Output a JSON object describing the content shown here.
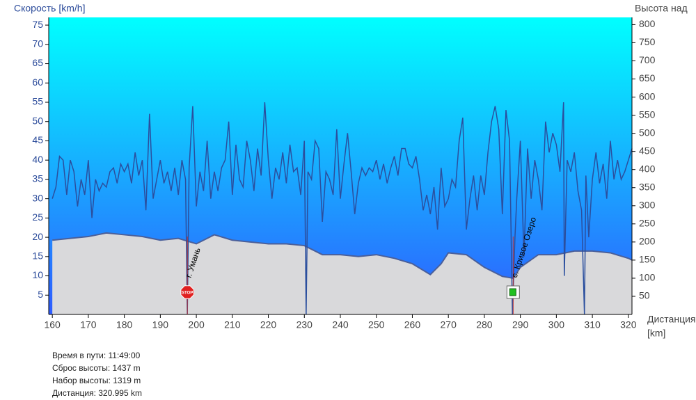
{
  "chart_data": {
    "type": "line",
    "ylabel": "Скорость [km/h]",
    "y2label": "Высота над",
    "xlabel": [
      "Дистанция",
      "[km]"
    ],
    "xlim": [
      159,
      321
    ],
    "xticks": [
      160,
      170,
      180,
      190,
      200,
      210,
      220,
      230,
      240,
      250,
      260,
      270,
      280,
      290,
      300,
      310,
      320
    ],
    "ylim": [
      0,
      77
    ],
    "yticks": [
      5,
      10,
      15,
      20,
      25,
      30,
      35,
      40,
      45,
      50,
      55,
      60,
      65,
      70,
      75
    ],
    "y2lim": [
      0,
      820
    ],
    "y2ticks": [
      50,
      100,
      150,
      200,
      250,
      300,
      350,
      400,
      450,
      500,
      550,
      600,
      650,
      700,
      750,
      800
    ],
    "series": [
      {
        "name": "Скорость",
        "color": "#2b4f9e",
        "x": [
          160,
          161,
          162,
          163,
          164,
          165,
          166,
          167,
          168,
          169,
          170,
          171,
          172,
          173,
          174,
          175,
          176,
          177,
          178,
          179,
          180,
          181,
          182,
          183,
          184,
          185,
          186,
          187,
          188,
          189,
          190,
          191,
          192,
          193,
          194,
          195,
          196,
          197,
          197.5,
          198,
          199,
          200,
          201,
          202,
          203,
          204,
          205,
          206,
          207,
          208,
          209,
          210,
          211,
          212,
          213,
          214,
          215,
          216,
          217,
          218,
          219,
          220,
          221,
          222,
          223,
          224,
          225,
          226,
          227,
          228,
          229,
          230,
          230.5,
          231,
          232,
          233,
          234,
          235,
          236,
          237,
          238,
          239,
          240,
          241,
          242,
          243,
          244,
          245,
          246,
          247,
          248,
          249,
          250,
          251,
          252,
          253,
          254,
          255,
          256,
          257,
          258,
          259,
          260,
          261,
          262,
          263,
          264,
          265,
          266,
          267,
          268,
          269,
          270,
          271,
          272,
          273,
          274,
          275,
          276,
          277,
          278,
          279,
          280,
          281,
          282,
          283,
          284,
          285,
          286,
          287,
          287.8,
          288.5,
          289,
          290,
          291,
          292,
          293,
          294,
          295,
          296,
          297,
          298,
          299,
          300,
          301,
          302,
          302.2,
          303,
          304,
          305,
          306,
          307,
          307.8,
          308.2,
          309,
          310,
          311,
          312,
          313,
          314,
          315,
          316,
          317,
          318,
          319,
          320,
          321
        ],
        "values": [
          30,
          33,
          41,
          40,
          31,
          40,
          37,
          28,
          35,
          31,
          40,
          25,
          35,
          32,
          34,
          33,
          37,
          38,
          34,
          39,
          37,
          39,
          34,
          42,
          36,
          40,
          27,
          52,
          30,
          35,
          40,
          34,
          37,
          32,
          38,
          31,
          40,
          35,
          0,
          38,
          54,
          28,
          37,
          32,
          45,
          30,
          37,
          32,
          38,
          40,
          50,
          31,
          44,
          35,
          33,
          45,
          40,
          32,
          43,
          36,
          55,
          40,
          30,
          38,
          35,
          42,
          34,
          44,
          37,
          38,
          31,
          45,
          0,
          37,
          35,
          45,
          43,
          24,
          37,
          35,
          31,
          48,
          30,
          39,
          47,
          37,
          26,
          34,
          38,
          36,
          38,
          37,
          40,
          35,
          39,
          34,
          38,
          41,
          36,
          43,
          43,
          39,
          38,
          41,
          35,
          27,
          31,
          26,
          33,
          22,
          38,
          28,
          30,
          35,
          33,
          45,
          51,
          22,
          30,
          36,
          27,
          36,
          31,
          42,
          50,
          54,
          48,
          26,
          53,
          45,
          0,
          20,
          30,
          45,
          15,
          43,
          30,
          40,
          35,
          27,
          50,
          42,
          47,
          44,
          37,
          55,
          10,
          40,
          37,
          42,
          32,
          27,
          0,
          36,
          20,
          35,
          42,
          34,
          39,
          30,
          45,
          35,
          40,
          35,
          37,
          40,
          43
        ]
      },
      {
        "name": "Высота",
        "color": "#d9d9db",
        "axis": "y2",
        "x": [
          160,
          165,
          170,
          175,
          180,
          185,
          190,
          195,
          200,
          205,
          210,
          215,
          220,
          225,
          230,
          235,
          240,
          245,
          250,
          255,
          260,
          265,
          268,
          270,
          275,
          280,
          285,
          288,
          290,
          295,
          300,
          305,
          310,
          315,
          320,
          321
        ],
        "values": [
          205,
          210,
          215,
          225,
          220,
          215,
          205,
          210,
          195,
          220,
          205,
          200,
          195,
          195,
          190,
          165,
          165,
          160,
          165,
          155,
          140,
          110,
          140,
          170,
          165,
          130,
          105,
          100,
          130,
          165,
          165,
          175,
          175,
          170,
          155,
          150
        ]
      }
    ],
    "markers": [
      {
        "x": 197.5,
        "label": "г. Умань",
        "icon": "STOP"
      },
      {
        "x": 288,
        "label": "с. Кривое Озеро"
      }
    ]
  },
  "info": [
    "Время в пути: 11:49:00",
    "Сброс высоты: 1437 m",
    "Набор высоты: 1319 m",
    "Дистанция: 320.995 km"
  ]
}
